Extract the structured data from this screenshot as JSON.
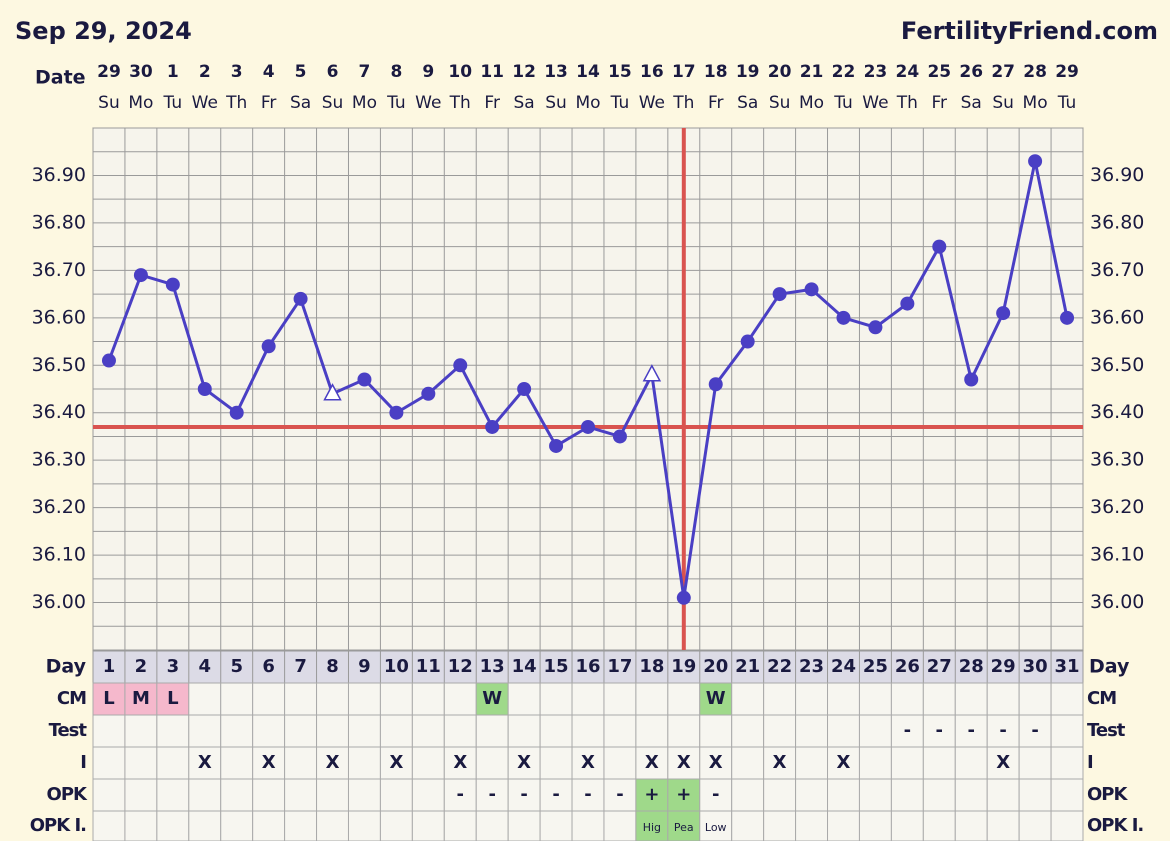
{
  "chart_data": {
    "type": "line",
    "title": "Sep 29, 2024",
    "site": "FertilityFriend.com",
    "date_label": "Date",
    "dates": [
      "29",
      "30",
      "1",
      "2",
      "3",
      "4",
      "5",
      "6",
      "7",
      "8",
      "9",
      "10",
      "11",
      "12",
      "13",
      "14",
      "15",
      "16",
      "17",
      "18",
      "19",
      "20",
      "21",
      "22",
      "23",
      "24",
      "25",
      "26",
      "27",
      "28",
      "29"
    ],
    "weekdays": [
      "Su",
      "Mo",
      "Tu",
      "We",
      "Th",
      "Fr",
      "Sa",
      "Su",
      "Mo",
      "Tu",
      "We",
      "Th",
      "Fr",
      "Sa",
      "Su",
      "Mo",
      "Tu",
      "We",
      "Th",
      "Fr",
      "Sa",
      "Su",
      "Mo",
      "Tu",
      "We",
      "Th",
      "Fr",
      "Sa",
      "Su",
      "Mo",
      "Tu"
    ],
    "day_label": "Day",
    "days": [
      1,
      2,
      3,
      4,
      5,
      6,
      7,
      8,
      9,
      10,
      11,
      12,
      13,
      14,
      15,
      16,
      17,
      18,
      19,
      20,
      21,
      22,
      23,
      24,
      25,
      26,
      27,
      28,
      29,
      30,
      31
    ],
    "values": [
      36.51,
      36.69,
      36.67,
      36.45,
      36.4,
      36.54,
      36.64,
      36.44,
      36.47,
      36.4,
      36.44,
      36.5,
      36.37,
      36.45,
      36.33,
      36.37,
      36.35,
      36.48,
      36.01,
      36.46,
      36.55,
      36.65,
      36.66,
      36.6,
      36.58,
      36.63,
      36.75,
      36.47,
      36.61,
      36.93,
      36.6
    ],
    "markers": [
      "circle",
      "circle",
      "circle",
      "circle",
      "circle",
      "circle",
      "circle",
      "open-triangle",
      "circle",
      "circle",
      "circle",
      "circle",
      "circle",
      "circle",
      "circle",
      "circle",
      "circle",
      "open-triangle",
      "circle",
      "circle",
      "circle",
      "circle",
      "circle",
      "circle",
      "circle",
      "circle",
      "circle",
      "circle",
      "circle",
      "circle",
      "circle"
    ],
    "color": "#4a3fc4",
    "ylim": [
      35.9,
      37.0
    ],
    "yticks": [
      {
        "value": 36.0,
        "label": "36.00"
      },
      {
        "value": 36.1,
        "label": "36.10"
      },
      {
        "value": 36.2,
        "label": "36.20"
      },
      {
        "value": 36.3,
        "label": "36.30"
      },
      {
        "value": 36.4,
        "label": "36.40"
      },
      {
        "value": 36.5,
        "label": "36.50"
      },
      {
        "value": 36.6,
        "label": "36.60"
      },
      {
        "value": 36.7,
        "label": "36.70"
      },
      {
        "value": 36.8,
        "label": "36.80"
      },
      {
        "value": 36.9,
        "label": "36.90"
      }
    ],
    "y_grid_lines": [
      35.9,
      35.95,
      36.0,
      36.05,
      36.1,
      36.15,
      36.2,
      36.25,
      36.3,
      36.35,
      36.4,
      36.45,
      36.5,
      36.55,
      36.6,
      36.65,
      36.7,
      36.75,
      36.8,
      36.85,
      36.9,
      36.95,
      37.0
    ],
    "coverline": 36.37,
    "ovulation_day": 19,
    "marker_line_color": "#d9534f",
    "cell_colors": {
      "L": "#f5b8cc",
      "M": "#f5b8cc",
      "W": "#9fd98a",
      "+": "#9fd98a",
      "Hig": "#9fd98a",
      "Pea": "#9fd98a"
    },
    "rows": [
      {
        "label": "CM",
        "cells": [
          "L",
          "M",
          "L",
          null,
          null,
          null,
          null,
          null,
          null,
          null,
          null,
          null,
          "W",
          null,
          null,
          null,
          null,
          null,
          null,
          "W",
          null,
          null,
          null,
          null,
          null,
          null,
          null,
          null,
          null,
          null,
          null
        ]
      },
      {
        "label": "Test",
        "cells": [
          null,
          null,
          null,
          null,
          null,
          null,
          null,
          null,
          null,
          null,
          null,
          null,
          null,
          null,
          null,
          null,
          null,
          null,
          null,
          null,
          null,
          null,
          null,
          null,
          null,
          "-",
          "-",
          "-",
          "-",
          "-",
          null
        ]
      },
      {
        "label": "I",
        "cells": [
          null,
          null,
          null,
          "X",
          null,
          "X",
          null,
          "X",
          null,
          "X",
          null,
          "X",
          null,
          "X",
          null,
          "X",
          null,
          "X",
          "X",
          "X",
          null,
          "X",
          null,
          "X",
          null,
          null,
          null,
          null,
          "X",
          null,
          null
        ]
      },
      {
        "label": "OPK",
        "cells": [
          null,
          null,
          null,
          null,
          null,
          null,
          null,
          null,
          null,
          null,
          null,
          "-",
          "-",
          "-",
          "-",
          "-",
          "-",
          "+",
          "+",
          "-",
          null,
          null,
          null,
          null,
          null,
          null,
          null,
          null,
          null,
          null,
          null
        ]
      },
      {
        "label": "OPK I.",
        "cells": [
          null,
          null,
          null,
          null,
          null,
          null,
          null,
          null,
          null,
          null,
          null,
          null,
          null,
          null,
          null,
          null,
          null,
          "Hig",
          "Pea",
          "Low",
          null,
          null,
          null,
          null,
          null,
          null,
          null,
          null,
          null,
          null,
          null
        ]
      }
    ]
  }
}
